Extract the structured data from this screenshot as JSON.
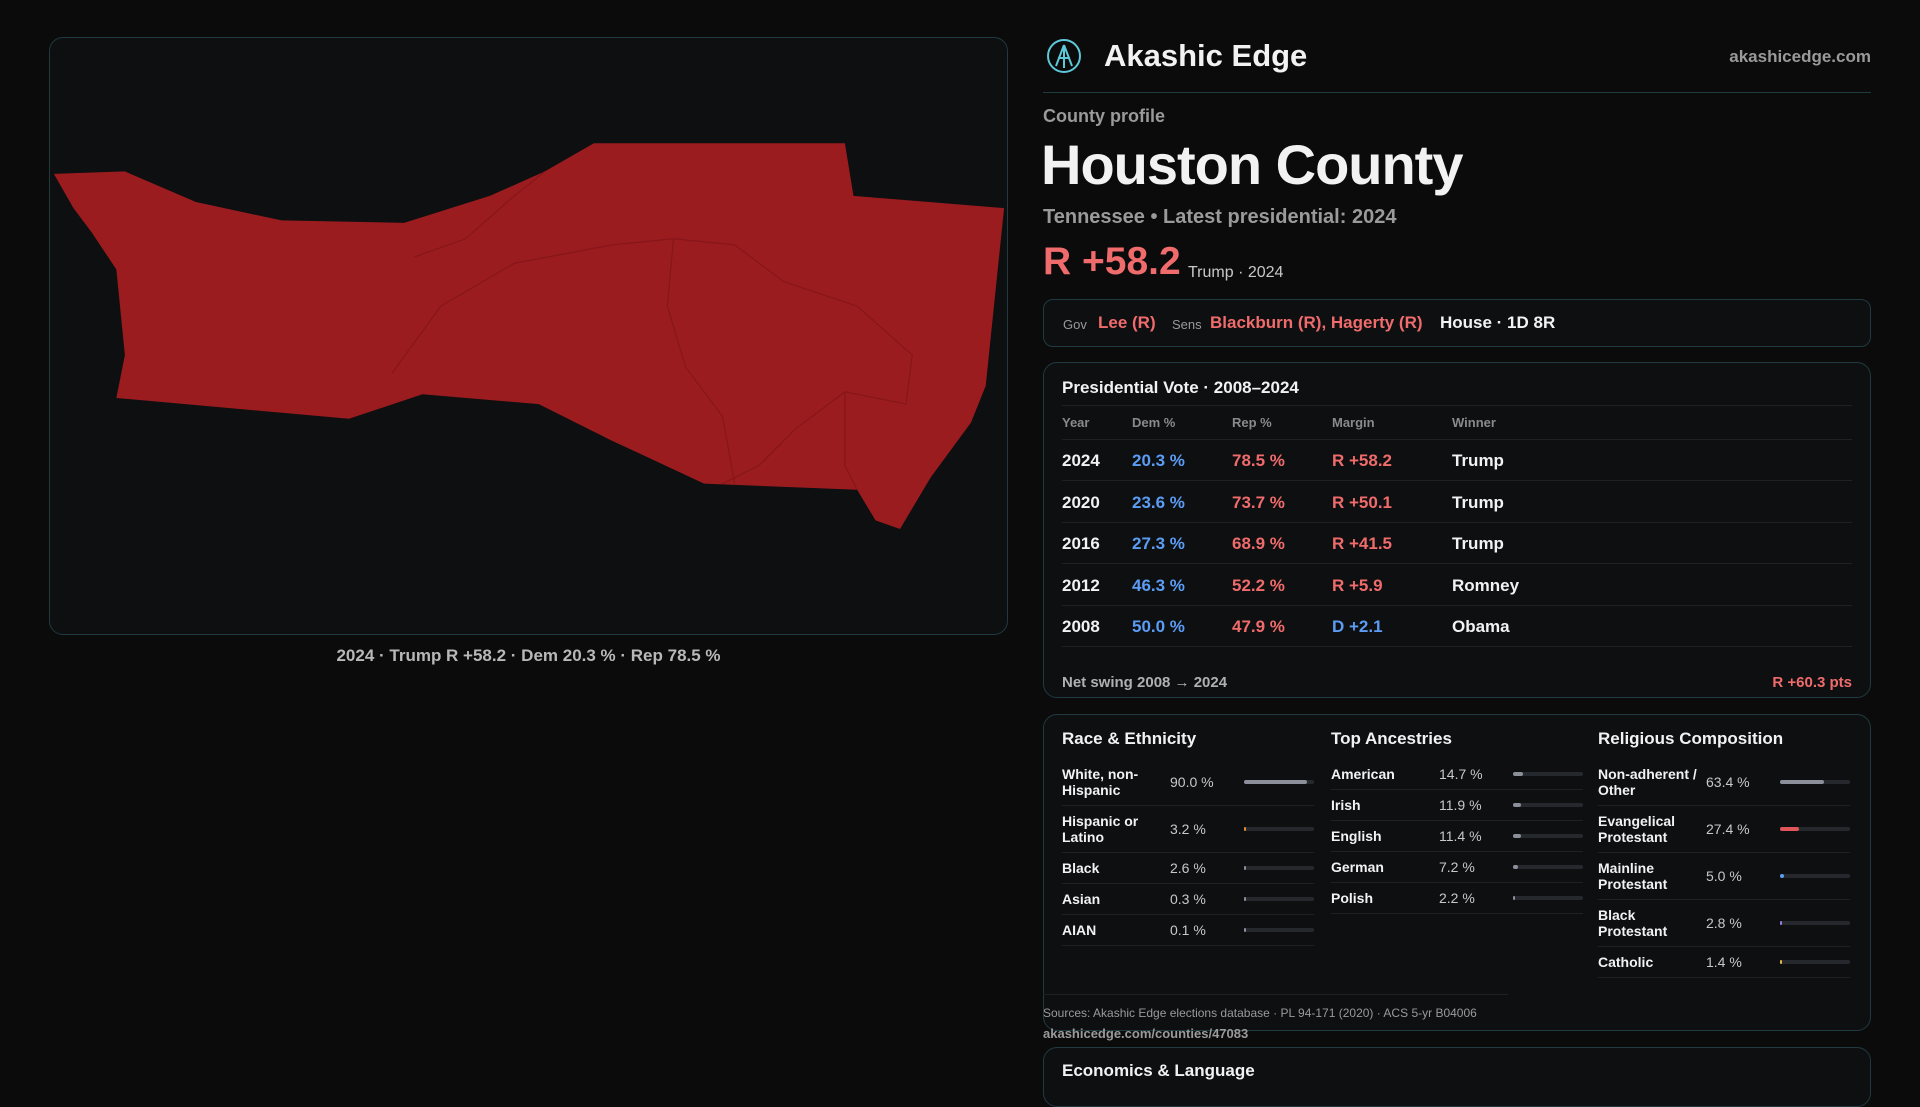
{
  "header": {
    "brand": "Akashic Edge",
    "site": "akashicedge.com"
  },
  "map": {
    "caption": "2024 · Trump R +58.2 · Dem 20.3 % · Rep 78.5 %"
  },
  "profile": {
    "kicker": "County profile",
    "title": "Houston County",
    "subtitle": "Tennessee • Latest presidential: 2024",
    "margin": "R +58.2",
    "margin_note": "Trump · 2024"
  },
  "officials": {
    "gov_label": "Gov",
    "gov": "Lee (R)",
    "sens_label": "Sens",
    "sens": "Blackburn (R), Hagerty (R)",
    "house": "House · 1D 8R"
  },
  "presidential": {
    "title": "Presidential Vote · 2008–2024",
    "columns": [
      "Year",
      "Dem %",
      "Rep %",
      "Margin",
      "Winner"
    ],
    "rows": [
      [
        "2024",
        "20.3 %",
        "78.5 %",
        "R +58.2",
        "Trump"
      ],
      [
        "2020",
        "23.6 %",
        "73.7 %",
        "R +50.1",
        "Trump"
      ],
      [
        "2016",
        "27.3 %",
        "68.9 %",
        "R +41.5",
        "Trump"
      ],
      [
        "2012",
        "46.3 %",
        "52.2 %",
        "R +5.9",
        "Romney"
      ],
      [
        "2008",
        "50.0 %",
        "47.9 %",
        "D +2.1",
        "Obama"
      ]
    ],
    "margin_colors": [
      "#f06b6b",
      "#f06b6b",
      "#f06b6b",
      "#f06b6b",
      "#5b9cf5"
    ],
    "swing_label": "Net swing 2008 → 2024",
    "swing": "R +60.3 pts"
  },
  "demographics": [
    {
      "title": "Race & Ethnicity",
      "xlim": [
        0,
        100
      ],
      "rows": [
        {
          "name": "White, non-Hispanic",
          "value": 90.0,
          "label": "90.0 %",
          "color": "#8a8f99"
        },
        {
          "name": "Hispanic or Latino",
          "value": 3.2,
          "label": "3.2 %",
          "color": "#e58a3a"
        },
        {
          "name": "Black",
          "value": 2.6,
          "label": "2.6 %",
          "color": "#8a8f99"
        },
        {
          "name": "Asian",
          "value": 0.3,
          "label": "0.3 %",
          "color": "#8a8f99"
        },
        {
          "name": "AIAN",
          "value": 0.1,
          "label": "0.1 %",
          "color": "#8a8f99"
        }
      ]
    },
    {
      "title": "Top Ancestries",
      "xlim": [
        0,
        100
      ],
      "rows": [
        {
          "name": "American",
          "value": 14.7,
          "label": "14.7 %",
          "color": "#8a8f99"
        },
        {
          "name": "Irish",
          "value": 11.9,
          "label": "11.9 %",
          "color": "#8a8f99"
        },
        {
          "name": "English",
          "value": 11.4,
          "label": "11.4 %",
          "color": "#8a8f99"
        },
        {
          "name": "German",
          "value": 7.2,
          "label": "7.2 %",
          "color": "#8a8f99"
        },
        {
          "name": "Polish",
          "value": 2.2,
          "label": "2.2 %",
          "color": "#8a8f99"
        }
      ]
    },
    {
      "title": "Religious Composition",
      "xlim": [
        0,
        100
      ],
      "rows": [
        {
          "name": "Non-adherent / Other",
          "value": 63.4,
          "label": "63.4 %",
          "color": "#8a8f99"
        },
        {
          "name": "Evangelical Protestant",
          "value": 27.4,
          "label": "27.4 %",
          "color": "#e0555b"
        },
        {
          "name": "Mainline Protestant",
          "value": 5.0,
          "label": "5.0 %",
          "color": "#5b9cf5"
        },
        {
          "name": "Black Protestant",
          "value": 2.8,
          "label": "2.8 %",
          "color": "#9a7ce0"
        },
        {
          "name": "Catholic",
          "value": 1.4,
          "label": "1.4 %",
          "color": "#e0b84a"
        }
      ]
    }
  ],
  "sources": "Sources: Akashic Edge elections database · PL 94-171 (2020) · ACS 5-yr B04006",
  "url": "akashicedge.com/counties/47083",
  "economics": {
    "title": "Economics & Language"
  }
}
